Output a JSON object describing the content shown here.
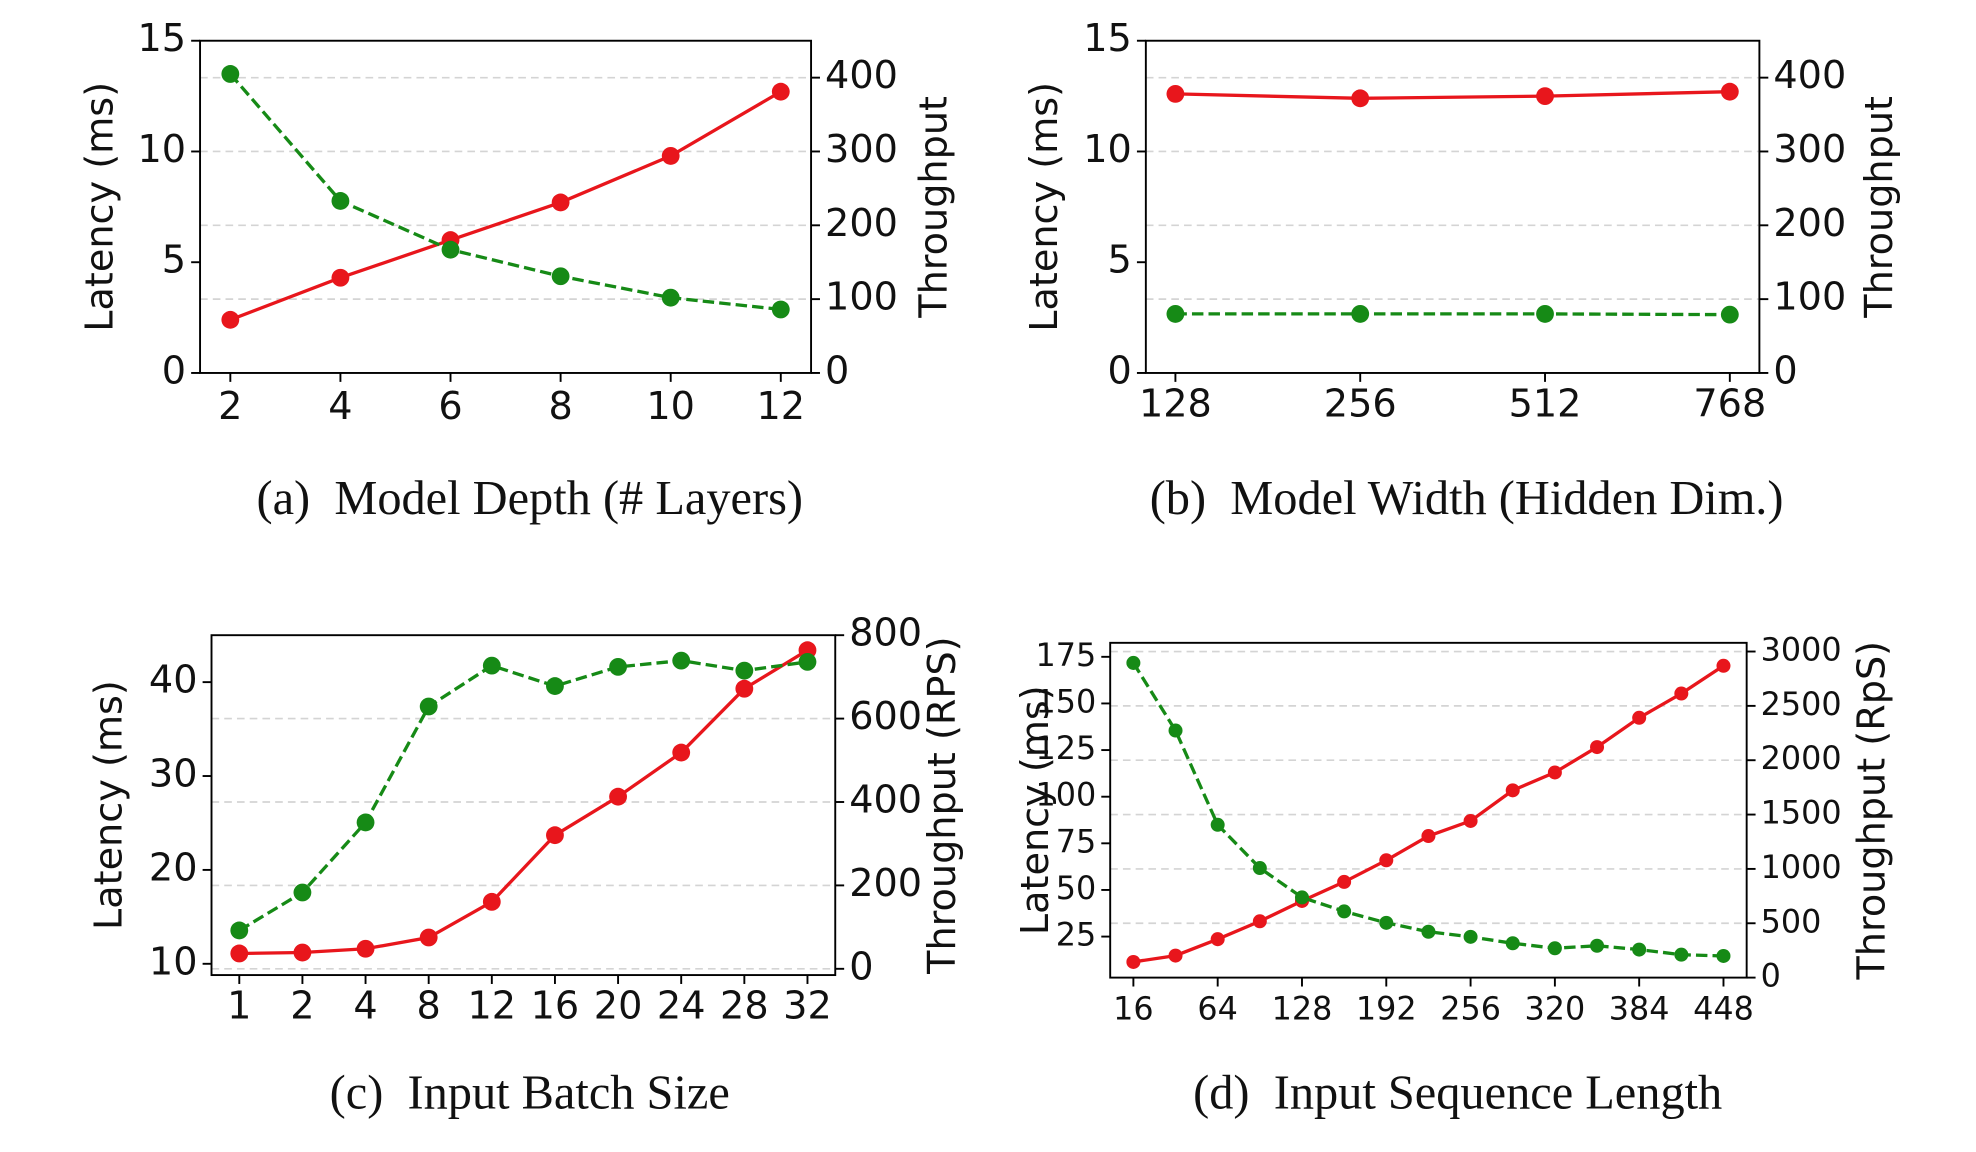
{
  "chart_data": [
    {
      "type": "line",
      "caption": "(a)  Model Depth (# Layers)",
      "ylabel": "Latency (ms)",
      "y2label": "Throughput",
      "x": [
        2,
        4,
        6,
        8,
        10,
        12
      ],
      "xlim": [
        1.45,
        12.55
      ],
      "xticks": [
        2,
        4,
        6,
        8,
        10,
        12
      ],
      "ylim": [
        0,
        15
      ],
      "yticks": [
        0,
        5,
        10,
        15
      ],
      "y2lim": [
        0,
        450
      ],
      "y2ticks": [
        0,
        100,
        200,
        300,
        400
      ],
      "grid": true,
      "grid_axis": "y2",
      "series": [
        {
          "color": "#e8161c",
          "linestyle": "solid",
          "axis": "y",
          "values": [
            2.4,
            4.3,
            6.0,
            7.7,
            9.8,
            12.7
          ]
        },
        {
          "color": "#168a16",
          "linestyle": "dashed",
          "axis": "y2",
          "values": [
            405,
            233,
            167,
            131,
            102,
            86
          ]
        }
      ]
    },
    {
      "type": "line",
      "caption": "(b)  Model Width (Hidden Dim.)",
      "ylabel": "Latency (ms)",
      "y2label": "Throughput",
      "categories": [
        128,
        256,
        512,
        768
      ],
      "ylim": [
        0,
        15
      ],
      "yticks": [
        0,
        5,
        10,
        15
      ],
      "y2lim": [
        0,
        450
      ],
      "y2ticks": [
        0,
        100,
        200,
        300,
        400
      ],
      "grid": true,
      "grid_axis": "y2",
      "series": [
        {
          "color": "#e8161c",
          "linestyle": "solid",
          "axis": "y",
          "values": [
            12.6,
            12.4,
            12.5,
            12.7
          ]
        },
        {
          "color": "#168a16",
          "linestyle": "dashed",
          "axis": "y2",
          "values": [
            80,
            80,
            80,
            79
          ]
        }
      ]
    },
    {
      "type": "line",
      "caption": "(c)  Input Batch Size",
      "ylabel": "Latency (ms)",
      "y2label": "Throughput (RPS)",
      "categories": [
        1,
        2,
        4,
        8,
        12,
        16,
        20,
        24,
        28,
        32
      ],
      "ylim": [
        8.8,
        45
      ],
      "yticks": [
        10,
        20,
        30,
        40
      ],
      "y2lim": [
        -15,
        800
      ],
      "y2ticks": [
        0,
        200,
        400,
        600,
        800
      ],
      "grid": true,
      "grid_axis": "y2",
      "series": [
        {
          "color": "#e8161c",
          "linestyle": "solid",
          "axis": "y",
          "values": [
            11.1,
            11.2,
            11.6,
            12.8,
            16.6,
            23.7,
            27.8,
            32.5,
            39.3,
            43.4
          ]
        },
        {
          "color": "#168a16",
          "linestyle": "dashed",
          "axis": "y2",
          "values": [
            92,
            183,
            351,
            629,
            727,
            678,
            724,
            739,
            715,
            736
          ]
        }
      ]
    },
    {
      "type": "line",
      "caption": "(d)  Input Sequence Length",
      "ylabel": "Latency (ms)",
      "y2label": "Throughput (RpS)",
      "categories": [
        16,
        null,
        64,
        null,
        128,
        null,
        192,
        null,
        256,
        null,
        320,
        null,
        384,
        null,
        448
      ],
      "ylim": [
        3,
        182.5
      ],
      "yticks": [
        25,
        50,
        75,
        100,
        125,
        150,
        175
      ],
      "y2lim": [
        0,
        3080
      ],
      "y2ticks": [
        0,
        500,
        1000,
        1500,
        2000,
        2500,
        3000
      ],
      "grid": true,
      "grid_axis": "y2",
      "series": [
        {
          "color": "#e8161c",
          "linestyle": "solid",
          "axis": "y",
          "values": [
            11.4,
            14.8,
            23.6,
            33.2,
            44.1,
            54.3,
            65.9,
            78.9,
            87.0,
            103.4,
            113.0,
            126.6,
            142.3,
            155.3,
            170.2
          ]
        },
        {
          "color": "#168a16",
          "linestyle": "dashed",
          "axis": "y2",
          "values": [
            2895,
            2273,
            1406,
            1008,
            738,
            609,
            504,
            422,
            375,
            316,
            270,
            293,
            258,
            211,
            199
          ]
        }
      ]
    }
  ]
}
